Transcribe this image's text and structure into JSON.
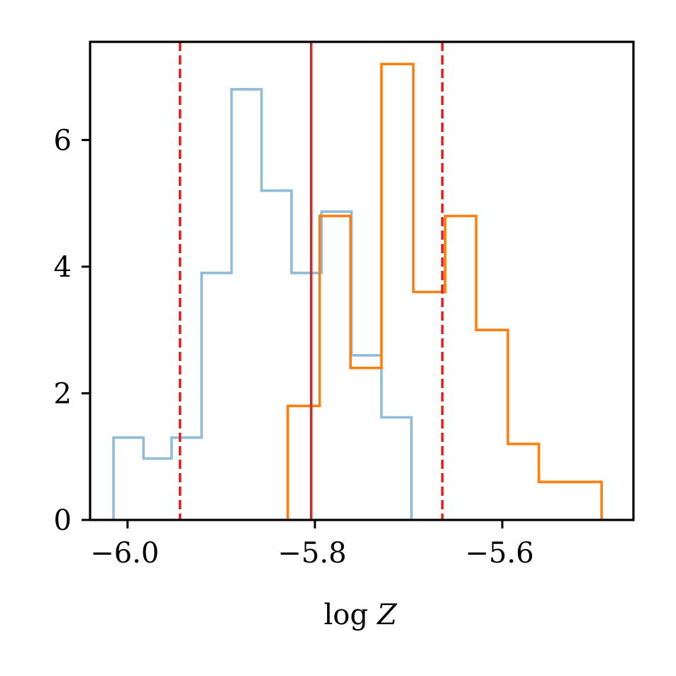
{
  "chart_data": {
    "type": "histogram",
    "xlabel": "log Z",
    "ylabel": "",
    "title": "",
    "xlim": [
      -6.04,
      -5.46
    ],
    "ylim": [
      0,
      7.55
    ],
    "grid": false,
    "legend": "none",
    "x_ticks": [
      {
        "value": -6.0,
        "label": "−6.0"
      },
      {
        "value": -5.8,
        "label": "−5.8"
      },
      {
        "value": -5.6,
        "label": "−5.6"
      }
    ],
    "y_ticks": [
      {
        "value": 0,
        "label": "0"
      },
      {
        "value": 2,
        "label": "2"
      },
      {
        "value": 4,
        "label": "4"
      },
      {
        "value": 6,
        "label": "6"
      }
    ],
    "series": [
      {
        "color": "#8fbcd9",
        "bin_edges": [
          -6.015,
          -5.983,
          -5.953,
          -5.921,
          -5.889,
          -5.857,
          -5.825,
          -5.793,
          -5.761,
          -5.729,
          -5.697
        ],
        "values": [
          1.3,
          0.97,
          1.3,
          3.9,
          6.8,
          5.2,
          3.9,
          4.87,
          2.6,
          1.62
        ]
      },
      {
        "color": "#ff7f0e",
        "bin_edges": [
          -5.829,
          -5.795,
          -5.762,
          -5.729,
          -5.695,
          -5.661,
          -5.628,
          -5.594,
          -5.561,
          -5.527,
          -5.494
        ],
        "values": [
          1.8,
          4.8,
          2.4,
          7.2,
          3.6,
          4.8,
          3.0,
          1.2,
          0.6,
          0.6
        ]
      }
    ],
    "reference_lines": [
      {
        "x": -5.804,
        "style": "solid",
        "color": "#d62728"
      },
      {
        "x": -5.944,
        "style": "dashed",
        "color": "#d62728"
      },
      {
        "x": -5.664,
        "style": "dashed",
        "color": "#d62728"
      }
    ]
  }
}
